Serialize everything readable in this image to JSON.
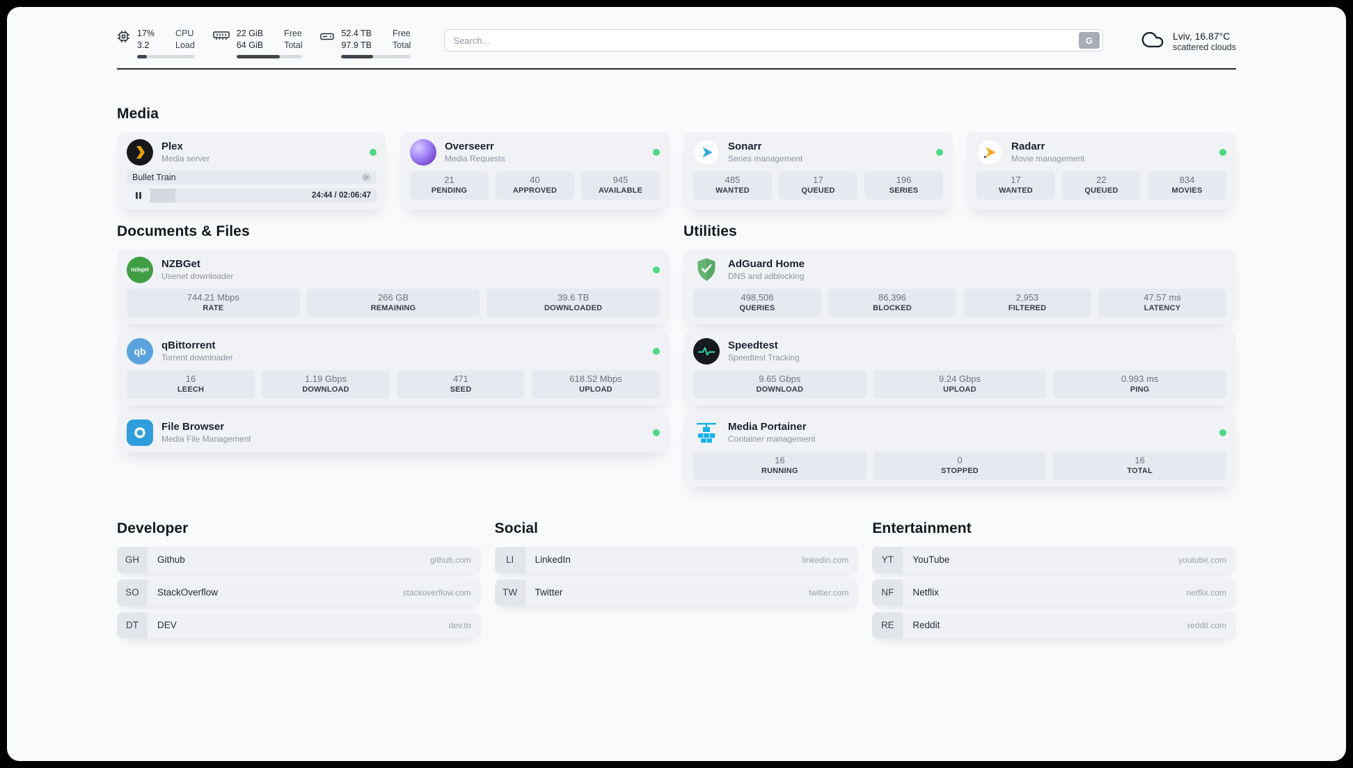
{
  "colors": {
    "status_online": "#4fd882",
    "plex_accent": "#e5a00d",
    "speedtest_accent": "#2fd3a2",
    "portainer_accent": "#15b1ea",
    "adguard_accent": "#66b574"
  },
  "header": {
    "cpu": {
      "value_top": "17%",
      "value_bottom": "3.2",
      "label_top": "CPU",
      "label_bottom": "Load",
      "bar_pct": 17
    },
    "ram": {
      "value_top": "22 GiB",
      "value_bottom": "64 GiB",
      "label_top": "Free",
      "label_bottom": "Total",
      "bar_pct": 66
    },
    "disk": {
      "value_top": "52.4 TB",
      "value_bottom": "97.9 TB",
      "label_top": "Free",
      "label_bottom": "Total",
      "bar_pct": 46
    },
    "search": {
      "placeholder": "Search...",
      "button_label": "G"
    },
    "weather": {
      "location": "Lviv, 16.87°C",
      "condition": "scattered clouds"
    }
  },
  "sections": {
    "media": {
      "title": "Media"
    },
    "documents": {
      "title": "Documents & Files"
    },
    "utilities": {
      "title": "Utilities"
    },
    "developer": {
      "title": "Developer"
    },
    "social": {
      "title": "Social"
    },
    "entertainment": {
      "title": "Entertainment"
    }
  },
  "apps": {
    "plex": {
      "name": "Plex",
      "subtitle": "Media server",
      "now_playing": "Bullet Train",
      "time": "24:44 / 02:06:47",
      "progress_pct": 19.5
    },
    "overseerr": {
      "name": "Overseerr",
      "subtitle": "Media Requests",
      "stats": [
        {
          "value": "21",
          "label": "PENDING"
        },
        {
          "value": "40",
          "label": "APPROVED"
        },
        {
          "value": "945",
          "label": "AVAILABLE"
        }
      ]
    },
    "sonarr": {
      "name": "Sonarr",
      "subtitle": "Series management",
      "stats": [
        {
          "value": "485",
          "label": "WANTED"
        },
        {
          "value": "17",
          "label": "QUEUED"
        },
        {
          "value": "196",
          "label": "SERIES"
        }
      ]
    },
    "radarr": {
      "name": "Radarr",
      "subtitle": "Movie management",
      "stats": [
        {
          "value": "17",
          "label": "WANTED"
        },
        {
          "value": "22",
          "label": "QUEUED"
        },
        {
          "value": "834",
          "label": "MOVIES"
        }
      ]
    },
    "nzbget": {
      "name": "NZBGet",
      "subtitle": "Usenet downloader",
      "icon_text": "nzbget",
      "stats": [
        {
          "value": "744.21 Mbps",
          "label": "RATE"
        },
        {
          "value": "266 GB",
          "label": "REMAINING"
        },
        {
          "value": "39.6 TB",
          "label": "DOWNLOADED"
        }
      ]
    },
    "qbittorrent": {
      "name": "qBittorrent",
      "subtitle": "Torrent downloader",
      "icon_text": "qb",
      "stats": [
        {
          "value": "16",
          "label": "LEECH"
        },
        {
          "value": "1.19 Gbps",
          "label": "DOWNLOAD"
        },
        {
          "value": "471",
          "label": "SEED"
        },
        {
          "value": "618.52 Mbps",
          "label": "UPLOAD"
        }
      ]
    },
    "filebrowser": {
      "name": "File Browser",
      "subtitle": "Media File Management"
    },
    "adguard": {
      "name": "AdGuard Home",
      "subtitle": "DNS and adblocking",
      "stats": [
        {
          "value": "498,508",
          "label": "QUERIES"
        },
        {
          "value": "86,396",
          "label": "BLOCKED"
        },
        {
          "value": "2,953",
          "label": "FILTERED"
        },
        {
          "value": "47.57 ms",
          "label": "LATENCY"
        }
      ]
    },
    "speedtest": {
      "name": "Speedtest",
      "subtitle": "Speedtest Tracking",
      "stats": [
        {
          "value": "9.65 Gbps",
          "label": "DOWNLOAD"
        },
        {
          "value": "9.24 Gbps",
          "label": "UPLOAD"
        },
        {
          "value": "0.993 ms",
          "label": "PING"
        }
      ]
    },
    "portainer": {
      "name": "Media Portainer",
      "subtitle": "Container management",
      "stats": [
        {
          "value": "16",
          "label": "RUNNING"
        },
        {
          "value": "0",
          "label": "STOPPED"
        },
        {
          "value": "16",
          "label": "TOTAL"
        }
      ]
    }
  },
  "bookmarks": {
    "developer": [
      {
        "abbr": "GH",
        "name": "Github",
        "url": "github.com"
      },
      {
        "abbr": "SO",
        "name": "StackOverflow",
        "url": "stackoverflow.com"
      },
      {
        "abbr": "DT",
        "name": "DEV",
        "url": "dev.to"
      }
    ],
    "social": [
      {
        "abbr": "LI",
        "name": "LinkedIn",
        "url": "linkedin.com"
      },
      {
        "abbr": "TW",
        "name": "Twitter",
        "url": "twitter.com"
      }
    ],
    "entertainment": [
      {
        "abbr": "YT",
        "name": "YouTube",
        "url": "youtube.com"
      },
      {
        "abbr": "NF",
        "name": "Netflix",
        "url": "netflix.com"
      },
      {
        "abbr": "RE",
        "name": "Reddit",
        "url": "reddit.com"
      }
    ]
  }
}
